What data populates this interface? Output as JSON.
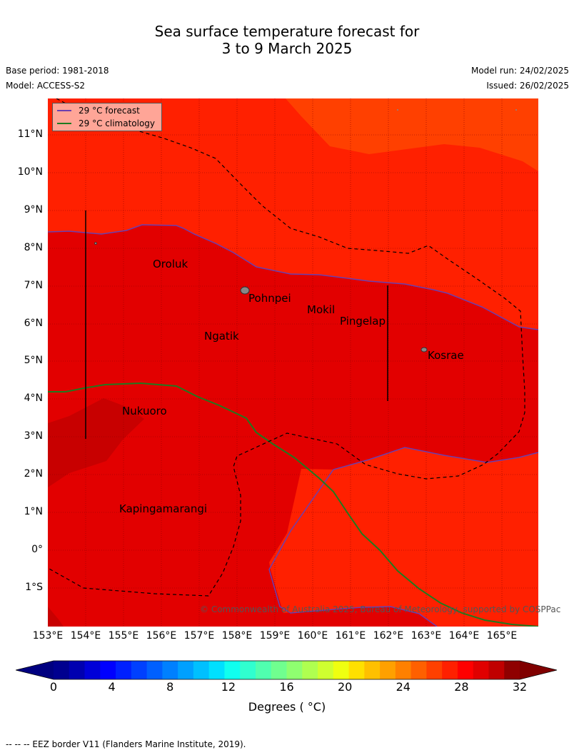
{
  "title_line1": "Sea surface temperature forecast for",
  "title_line2": "3 to 9 March 2025",
  "meta": {
    "base_period": "Base period: 1981-2018",
    "model": "Model: ACCESS-S2",
    "model_run": "Model run: 24/02/2025",
    "issued": "Issued: 26/02/2025"
  },
  "legend": {
    "forecast": "29 °C  forecast",
    "climatology": "29 °C  climatology",
    "forecast_color": "#6a3fb0",
    "climatology_color": "#1f7a1f"
  },
  "lat_ticks": [
    "11°N",
    "10°N",
    "9°N",
    "8°N",
    "7°N",
    "6°N",
    "5°N",
    "4°N",
    "3°N",
    "2°N",
    "1°N",
    "0°",
    "1°S"
  ],
  "lon_ticks": [
    "153°E",
    "154°E",
    "155°E",
    "156°E",
    "157°E",
    "158°E",
    "159°E",
    "160°E",
    "161°E",
    "162°E",
    "163°E",
    "164°E",
    "165°E"
  ],
  "places": [
    {
      "id": "oroluk",
      "name": "Oroluk"
    },
    {
      "id": "pohnpei",
      "name": "Pohnpei"
    },
    {
      "id": "mokil",
      "name": "Mokil"
    },
    {
      "id": "pingelap",
      "name": "Pingelap"
    },
    {
      "id": "ngatik",
      "name": "Ngatik"
    },
    {
      "id": "kosrae",
      "name": "Kosrae"
    },
    {
      "id": "nukuoro",
      "name": "Nukuoro"
    },
    {
      "id": "kapinga",
      "name": "Kapingamarangi"
    }
  ],
  "copyright": "© Commonwealth of Australia 2025, Bureau of Meteorology, supported by COSPPac",
  "colorbar": {
    "ticks": [
      "0",
      "4",
      "8",
      "12",
      "16",
      "20",
      "24",
      "28",
      "32"
    ],
    "label": "Degrees ( °C)",
    "colors": [
      "#00008f",
      "#0000b0",
      "#0000d8",
      "#0000ff",
      "#0020ff",
      "#0040ff",
      "#0060ff",
      "#0080ff",
      "#00a0ff",
      "#00c0ff",
      "#00e0ff",
      "#10ffef",
      "#30ffcf",
      "#50ffaf",
      "#70ff8f",
      "#8fff70",
      "#afff50",
      "#cfff30",
      "#efff10",
      "#ffe000",
      "#ffc000",
      "#ffa000",
      "#ff8000",
      "#ff6000",
      "#ff4000",
      "#ff2000",
      "#ff0000",
      "#e00000",
      "#c00000",
      "#8f0000"
    ],
    "under_color": "#000080",
    "over_color": "#800000"
  },
  "footer": "--  --  -- EEZ border V11 (Flanders Marine Institute, 2019).",
  "fills": {
    "c29": "#e20000",
    "c28": "#ff2000",
    "c30": "#c80000",
    "c27": "#ff4000"
  }
}
